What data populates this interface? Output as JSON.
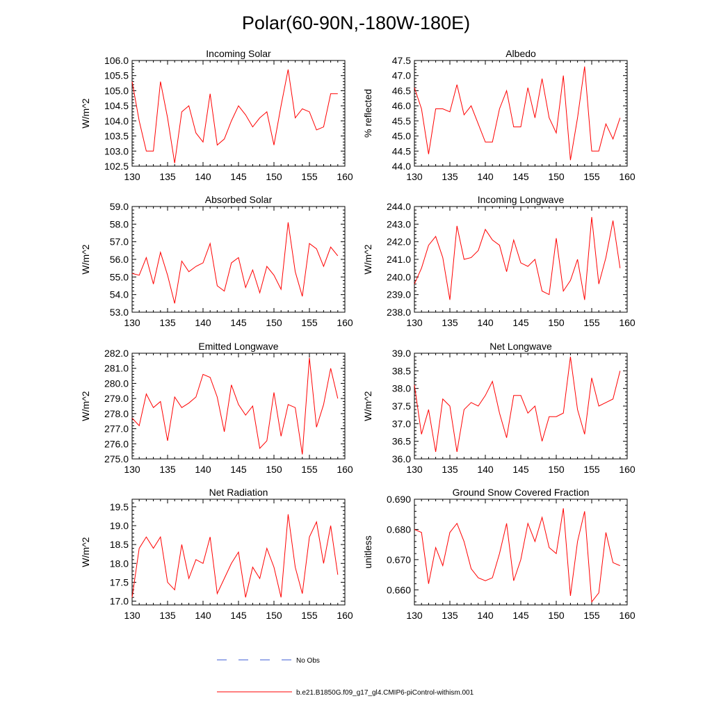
{
  "title": "Polar(60-90N,-180W-180E)",
  "colors": {
    "model": "#ff0000",
    "obs": "#3b5bd6"
  },
  "legend": {
    "obs_label": "No Obs",
    "model_label": "b.e21.B1850G.f09_g17_gl4.CMIP6-piControl-withism.001"
  },
  "chart_data": [
    {
      "type": "line",
      "title": "Incoming Solar",
      "ylabel": "W/m^2",
      "xlim": [
        130,
        160
      ],
      "ylim": [
        102.5,
        106.0
      ],
      "xticks": [
        130,
        135,
        140,
        145,
        150,
        155,
        160
      ],
      "xtick_labels": [
        "130",
        "135",
        "140",
        "145",
        "150",
        "155",
        "160"
      ],
      "yticks": [
        102.5,
        103.0,
        103.5,
        104.0,
        104.5,
        105.0,
        105.5,
        106.0
      ],
      "ytick_labels": [
        "102.5",
        "103.0",
        "103.5",
        "104.0",
        "104.5",
        "105.0",
        "105.5",
        "106.0"
      ],
      "x": [
        130,
        131,
        132,
        133,
        134,
        135,
        136,
        137,
        138,
        139,
        140,
        141,
        142,
        143,
        144,
        145,
        146,
        147,
        148,
        149,
        150,
        151,
        152,
        153,
        154,
        155,
        156,
        157,
        158,
        159
      ],
      "series": [
        {
          "name": "b.e21.B1850G.f09_g17_gl4.CMIP6-piControl-withism.001",
          "values": [
            105.3,
            104.0,
            103.0,
            103.0,
            105.3,
            104.1,
            102.6,
            104.3,
            104.5,
            103.6,
            103.3,
            104.9,
            103.2,
            103.4,
            104.0,
            104.5,
            104.2,
            103.8,
            104.1,
            104.3,
            103.2,
            104.5,
            105.7,
            104.1,
            104.4,
            104.3,
            103.7,
            103.8,
            104.9,
            104.9
          ]
        }
      ]
    },
    {
      "type": "line",
      "title": "Albedo",
      "ylabel": "% reflected",
      "xlim": [
        130,
        160
      ],
      "ylim": [
        44.0,
        47.5
      ],
      "xticks": [
        130,
        135,
        140,
        145,
        150,
        155,
        160
      ],
      "xtick_labels": [
        "130",
        "135",
        "140",
        "145",
        "150",
        "155",
        "160"
      ],
      "yticks": [
        44.0,
        44.5,
        45.0,
        45.5,
        46.0,
        46.5,
        47.0,
        47.5
      ],
      "ytick_labels": [
        "44.0",
        "44.5",
        "45.0",
        "45.5",
        "46.0",
        "46.5",
        "47.0",
        "47.5"
      ],
      "x": [
        130,
        131,
        132,
        133,
        134,
        135,
        136,
        137,
        138,
        139,
        140,
        141,
        142,
        143,
        144,
        145,
        146,
        147,
        148,
        149,
        150,
        151,
        152,
        153,
        154,
        155,
        156,
        157,
        158,
        159
      ],
      "series": [
        {
          "name": "b.e21.B1850G.f09_g17_gl4.CMIP6-piControl-withism.001",
          "values": [
            46.6,
            45.9,
            44.4,
            45.9,
            45.9,
            45.8,
            46.7,
            45.7,
            46.0,
            45.4,
            44.8,
            44.8,
            45.9,
            46.5,
            45.3,
            45.3,
            46.6,
            45.6,
            46.9,
            45.6,
            45.1,
            47.0,
            44.2,
            45.6,
            47.3,
            44.5,
            44.5,
            45.4,
            44.9,
            45.6
          ]
        }
      ]
    },
    {
      "type": "line",
      "title": "Absorbed Solar",
      "ylabel": "W/m^2",
      "xlim": [
        130,
        160
      ],
      "ylim": [
        53.0,
        59.0
      ],
      "xticks": [
        130,
        135,
        140,
        145,
        150,
        155,
        160
      ],
      "xtick_labels": [
        "130",
        "135",
        "140",
        "145",
        "150",
        "155",
        "160"
      ],
      "yticks": [
        53.0,
        54.0,
        55.0,
        56.0,
        57.0,
        58.0,
        59.0
      ],
      "ytick_labels": [
        "53.0",
        "54.0",
        "55.0",
        "56.0",
        "57.0",
        "58.0",
        "59.0"
      ],
      "x": [
        130,
        131,
        132,
        133,
        134,
        135,
        136,
        137,
        138,
        139,
        140,
        141,
        142,
        143,
        144,
        145,
        146,
        147,
        148,
        149,
        150,
        151,
        152,
        153,
        154,
        155,
        156,
        157,
        158,
        159
      ],
      "series": [
        {
          "name": "b.e21.B1850G.f09_g17_gl4.CMIP6-piControl-withism.001",
          "values": [
            55.2,
            55.1,
            56.1,
            54.6,
            56.4,
            55.1,
            53.5,
            55.9,
            55.3,
            55.6,
            55.8,
            56.9,
            54.5,
            54.2,
            55.8,
            56.1,
            54.4,
            55.4,
            54.1,
            55.6,
            55.1,
            54.3,
            58.1,
            55.3,
            53.9,
            56.9,
            56.6,
            55.6,
            56.7,
            56.2
          ]
        }
      ]
    },
    {
      "type": "line",
      "title": "Incoming Longwave",
      "ylabel": "W/m^2",
      "xlim": [
        130,
        160
      ],
      "ylim": [
        238.0,
        244.0
      ],
      "xticks": [
        130,
        135,
        140,
        145,
        150,
        155,
        160
      ],
      "xtick_labels": [
        "130",
        "135",
        "140",
        "145",
        "150",
        "155",
        "160"
      ],
      "yticks": [
        238.0,
        239.0,
        240.0,
        241.0,
        242.0,
        243.0,
        244.0
      ],
      "ytick_labels": [
        "238.0",
        "239.0",
        "240.0",
        "241.0",
        "242.0",
        "243.0",
        "244.0"
      ],
      "x": [
        130,
        131,
        132,
        133,
        134,
        135,
        136,
        137,
        138,
        139,
        140,
        141,
        142,
        143,
        144,
        145,
        146,
        147,
        148,
        149,
        150,
        151,
        152,
        153,
        154,
        155,
        156,
        157,
        158,
        159
      ],
      "series": [
        {
          "name": "b.e21.B1850G.f09_g17_gl4.CMIP6-piControl-withism.001",
          "values": [
            239.6,
            240.5,
            241.8,
            242.3,
            241.1,
            238.7,
            242.9,
            241.0,
            241.1,
            241.5,
            242.7,
            242.1,
            241.8,
            240.3,
            242.1,
            240.8,
            240.6,
            241.0,
            239.2,
            239.0,
            242.2,
            239.2,
            239.8,
            241.0,
            238.7,
            243.4,
            239.6,
            241.1,
            243.2,
            240.5
          ]
        }
      ]
    },
    {
      "type": "line",
      "title": "Emitted Longwave",
      "ylabel": "W/m^2",
      "xlim": [
        130,
        160
      ],
      "ylim": [
        275.0,
        282.0
      ],
      "xticks": [
        130,
        135,
        140,
        145,
        150,
        155,
        160
      ],
      "xtick_labels": [
        "130",
        "135",
        "140",
        "145",
        "150",
        "155",
        "160"
      ],
      "yticks": [
        275.0,
        276.0,
        277.0,
        278.0,
        279.0,
        280.0,
        281.0,
        282.0
      ],
      "ytick_labels": [
        "275.0",
        "276.0",
        "277.0",
        "278.0",
        "279.0",
        "280.0",
        "281.0",
        "282.0"
      ],
      "x": [
        130,
        131,
        132,
        133,
        134,
        135,
        136,
        137,
        138,
        139,
        140,
        141,
        142,
        143,
        144,
        145,
        146,
        147,
        148,
        149,
        150,
        151,
        152,
        153,
        154,
        155,
        156,
        157,
        158,
        159
      ],
      "series": [
        {
          "name": "b.e21.B1850G.f09_g17_gl4.CMIP6-piControl-withism.001",
          "values": [
            277.7,
            277.2,
            279.3,
            278.4,
            278.8,
            276.2,
            279.1,
            278.4,
            278.7,
            279.1,
            280.6,
            280.4,
            279.1,
            276.8,
            279.9,
            278.6,
            277.9,
            278.5,
            275.7,
            276.2,
            279.4,
            276.5,
            278.6,
            278.4,
            275.3,
            281.7,
            277.1,
            278.6,
            281.0,
            279.0
          ]
        }
      ]
    },
    {
      "type": "line",
      "title": "Net Longwave",
      "ylabel": "W/m^2",
      "xlim": [
        130,
        160
      ],
      "ylim": [
        36.0,
        39.0
      ],
      "xticks": [
        130,
        135,
        140,
        145,
        150,
        155,
        160
      ],
      "xtick_labels": [
        "130",
        "135",
        "140",
        "145",
        "150",
        "155",
        "160"
      ],
      "yticks": [
        36.0,
        36.5,
        37.0,
        37.5,
        38.0,
        38.5,
        39.0
      ],
      "ytick_labels": [
        "36.0",
        "36.5",
        "37.0",
        "37.5",
        "38.0",
        "38.5",
        "39.0"
      ],
      "x": [
        130,
        131,
        132,
        133,
        134,
        135,
        136,
        137,
        138,
        139,
        140,
        141,
        142,
        143,
        144,
        145,
        146,
        147,
        148,
        149,
        150,
        151,
        152,
        153,
        154,
        155,
        156,
        157,
        158,
        159
      ],
      "series": [
        {
          "name": "b.e21.B1850G.f09_g17_gl4.CMIP6-piControl-withism.001",
          "values": [
            38.1,
            36.7,
            37.4,
            36.2,
            37.7,
            37.5,
            36.2,
            37.4,
            37.6,
            37.5,
            37.8,
            38.2,
            37.3,
            36.6,
            37.8,
            37.8,
            37.3,
            37.5,
            36.5,
            37.2,
            37.2,
            37.3,
            38.9,
            37.4,
            36.7,
            38.3,
            37.5,
            37.6,
            37.7,
            38.5
          ]
        }
      ]
    },
    {
      "type": "line",
      "title": "Net Radiation",
      "ylabel": "W/m^2",
      "xlim": [
        130,
        160
      ],
      "ylim": [
        16.9,
        19.7
      ],
      "xticks": [
        130,
        135,
        140,
        145,
        150,
        155,
        160
      ],
      "xtick_labels": [
        "130",
        "135",
        "140",
        "145",
        "150",
        "155",
        "160"
      ],
      "yticks": [
        17.0,
        17.5,
        18.0,
        18.5,
        19.0,
        19.5
      ],
      "ytick_labels": [
        "17.0",
        "17.5",
        "18.0",
        "18.5",
        "19.0",
        "19.5"
      ],
      "x": [
        130,
        131,
        132,
        133,
        134,
        135,
        136,
        137,
        138,
        139,
        140,
        141,
        142,
        143,
        144,
        145,
        146,
        147,
        148,
        149,
        150,
        151,
        152,
        153,
        154,
        155,
        156,
        157,
        158,
        159
      ],
      "series": [
        {
          "name": "b.e21.B1850G.f09_g17_gl4.CMIP6-piControl-withism.001",
          "values": [
            17.1,
            18.4,
            18.7,
            18.4,
            18.7,
            17.5,
            17.3,
            18.5,
            17.6,
            18.1,
            18.0,
            18.7,
            17.2,
            17.6,
            18.0,
            18.3,
            17.1,
            17.9,
            17.6,
            18.4,
            17.9,
            17.1,
            19.3,
            17.9,
            17.2,
            18.7,
            19.1,
            18.0,
            19.0,
            17.7
          ]
        }
      ]
    },
    {
      "type": "line",
      "title": "Ground Snow Covered Fraction",
      "ylabel": "unitless",
      "xlim": [
        130,
        160
      ],
      "ylim": [
        0.655,
        0.69
      ],
      "xticks": [
        130,
        135,
        140,
        145,
        150,
        155,
        160
      ],
      "xtick_labels": [
        "130",
        "135",
        "140",
        "145",
        "150",
        "155",
        "160"
      ],
      "yticks": [
        0.66,
        0.67,
        0.68,
        0.69
      ],
      "ytick_labels": [
        "0.660",
        "0.670",
        "0.680",
        "0.690"
      ],
      "x": [
        130,
        131,
        132,
        133,
        134,
        135,
        136,
        137,
        138,
        139,
        140,
        141,
        142,
        143,
        144,
        145,
        146,
        147,
        148,
        149,
        150,
        151,
        152,
        153,
        154,
        155,
        156,
        157,
        158,
        159
      ],
      "series": [
        {
          "name": "b.e21.B1850G.f09_g17_gl4.CMIP6-piControl-withism.001",
          "values": [
            0.68,
            0.679,
            0.662,
            0.674,
            0.668,
            0.679,
            0.682,
            0.676,
            0.667,
            0.664,
            0.663,
            0.664,
            0.672,
            0.682,
            0.663,
            0.67,
            0.682,
            0.676,
            0.684,
            0.674,
            0.672,
            0.687,
            0.658,
            0.676,
            0.686,
            0.656,
            0.659,
            0.679,
            0.669,
            0.668
          ]
        }
      ]
    }
  ]
}
